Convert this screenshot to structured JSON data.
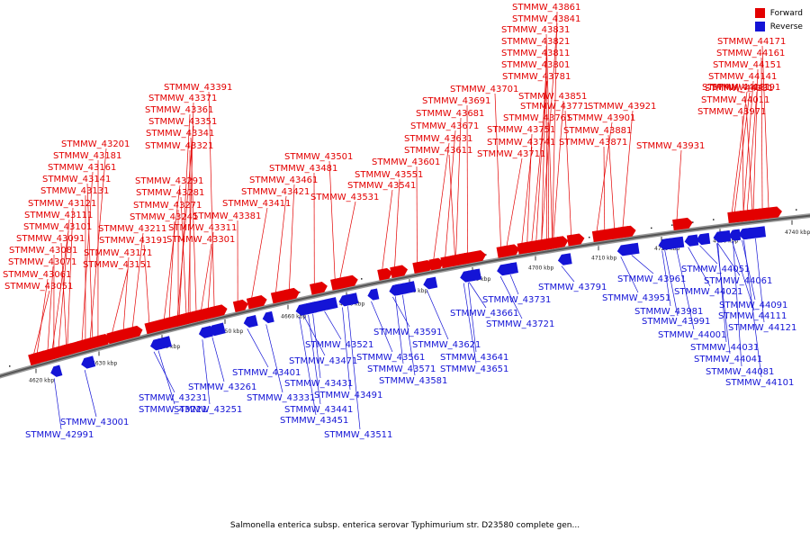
{
  "caption": "Salmonella enterica subsp. enterica serovar Typhimurium str. D23580 complete gen...",
  "legend": [
    {
      "label": "Forward",
      "color": "#e30000"
    },
    {
      "label": "Reverse",
      "color": "#1414d6"
    }
  ],
  "colors": {
    "forward": "#e30000",
    "reverse": "#1414d6",
    "backbone": "#555555"
  },
  "ticks": [
    "4620 kbp",
    "4630 kbp",
    "4640 kbp",
    "4650 kbp",
    "4660 kbp",
    "4670 kbp",
    "4680 kbp",
    "4690 kbp",
    "4700 kbp",
    "4710 kbp",
    "4720 kbp",
    "4730 kbp",
    "4740 kbp"
  ],
  "forward_genes": [
    "STMMW_43051",
    "STMMW_43061",
    "STMMW_43071",
    "STMMW_43081",
    "STMMW_43091",
    "STMMW_43101",
    "STMMW_43111",
    "STMMW_43121",
    "STMMW_43131",
    "STMMW_43141",
    "STMMW_43151",
    "STMMW_43161",
    "STMMW_43171",
    "STMMW_43181",
    "STMMW_43191",
    "STMMW_43201",
    "STMMW_43211",
    "STMMW_43241",
    "STMMW_43271",
    "STMMW_43281",
    "STMMW_43291",
    "STMMW_43301",
    "STMMW_43311",
    "STMMW_43321",
    "STMMW_43341",
    "STMMW_43351",
    "STMMW_43361",
    "STMMW_43371",
    "STMMW_43381",
    "STMMW_43391",
    "STMMW_43411",
    "STMMW_43421",
    "STMMW_43461",
    "STMMW_43481",
    "STMMW_43501",
    "STMMW_43531",
    "STMMW_43541",
    "STMMW_43551",
    "STMMW_43601",
    "STMMW_43611",
    "STMMW_43631",
    "STMMW_43671",
    "STMMW_43681",
    "STMMW_43691",
    "STMMW_43701",
    "STMMW_43711",
    "STMMW_43741",
    "STMMW_43751",
    "STMMW_43761",
    "STMMW_43771",
    "STMMW_43781",
    "STMMW_43801",
    "STMMW_43811",
    "STMMW_43821",
    "STMMW_43831",
    "STMMW_43841",
    "STMMW_43851",
    "STMMW_43861",
    "STMMW_43871",
    "STMMW_43881",
    "STMMW_43901",
    "STMMW_43921",
    "STMMW_43931",
    "STMMW_43971",
    "STMMW_44011",
    "STMMW_44131",
    "STMMW_44141",
    "STMMW_44151",
    "STMMW_44161",
    "STMMW_44171",
    "STMMW_44181",
    "STMMW_44191"
  ],
  "reverse_genes": [
    "STMMW_42991",
    "STMMW_43001",
    "STMMW_43221",
    "STMMW_43231",
    "STMMW_43251",
    "STMMW_43261",
    "STMMW_43331",
    "STMMW_43401",
    "STMMW_43431",
    "STMMW_43441",
    "STMMW_43451",
    "STMMW_43471",
    "STMMW_43491",
    "STMMW_43511",
    "STMMW_43521",
    "STMMW_43561",
    "STMMW_43571",
    "STMMW_43581",
    "STMMW_43591",
    "STMMW_43621",
    "STMMW_43641",
    "STMMW_43651",
    "STMMW_43661",
    "STMMW_43721",
    "STMMW_43731",
    "STMMW_43791",
    "STMMW_43951",
    "STMMW_43961",
    "STMMW_43981",
    "STMMW_43991",
    "STMMW_44001",
    "STMMW_44021",
    "STMMW_44031",
    "STMMW_44041",
    "STMMW_44051",
    "STMMW_44061",
    "STMMW_44081",
    "STMMW_44091",
    "STMMW_44101",
    "STMMW_44111",
    "STMMW_44121"
  ]
}
